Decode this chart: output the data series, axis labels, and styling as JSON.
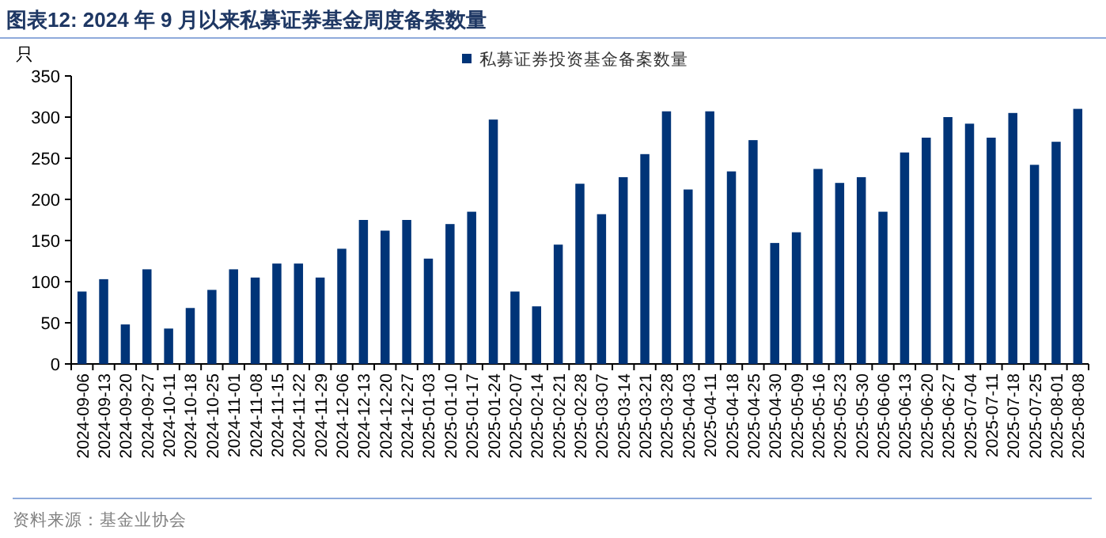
{
  "chart_data": {
    "type": "bar",
    "title": "图表12:  2024 年 9 月以来私募证券基金周度备案数量",
    "ylabel": "只",
    "categories": [
      "2024-09-06",
      "2024-09-13",
      "2024-09-20",
      "2024-09-27",
      "2024-10-11",
      "2024-10-18",
      "2024-10-25",
      "2024-11-01",
      "2024-11-08",
      "2024-11-15",
      "2024-11-22",
      "2024-11-29",
      "2024-12-06",
      "2024-12-13",
      "2024-12-20",
      "2024-12-27",
      "2025-01-03",
      "2025-01-10",
      "2025-01-17",
      "2025-01-24",
      "2025-02-07",
      "2025-02-14",
      "2025-02-21",
      "2025-02-28",
      "2025-03-07",
      "2025-03-14",
      "2025-03-21",
      "2025-03-28",
      "2025-04-03",
      "2025-04-11",
      "2025-04-18",
      "2025-04-25",
      "2025-04-30",
      "2025-05-09",
      "2025-05-16",
      "2025-05-23",
      "2025-05-30",
      "2025-06-06",
      "2025-06-13",
      "2025-06-20",
      "2025-06-27",
      "2025-07-04",
      "2025-07-11",
      "2025-07-18",
      "2025-07-25",
      "2025-08-01",
      "2025-08-08"
    ],
    "series": [
      {
        "name": "私募证券投资基金备案数量",
        "color": "#003478",
        "values": [
          88,
          103,
          48,
          115,
          43,
          68,
          90,
          115,
          105,
          122,
          122,
          105,
          140,
          175,
          162,
          175,
          128,
          170,
          185,
          297,
          88,
          70,
          145,
          219,
          182,
          227,
          255,
          307,
          212,
          307,
          234,
          272,
          147,
          160,
          237,
          220,
          227,
          185,
          257,
          275,
          300,
          292,
          275,
          305,
          242,
          270,
          310
        ]
      }
    ],
    "ylim": [
      0,
      350
    ],
    "yticks": [
      0,
      50,
      100,
      150,
      200,
      250,
      300,
      350
    ],
    "legend": "top right",
    "grid": false,
    "annotations": [
      "资料来源：基金业协会"
    ]
  }
}
